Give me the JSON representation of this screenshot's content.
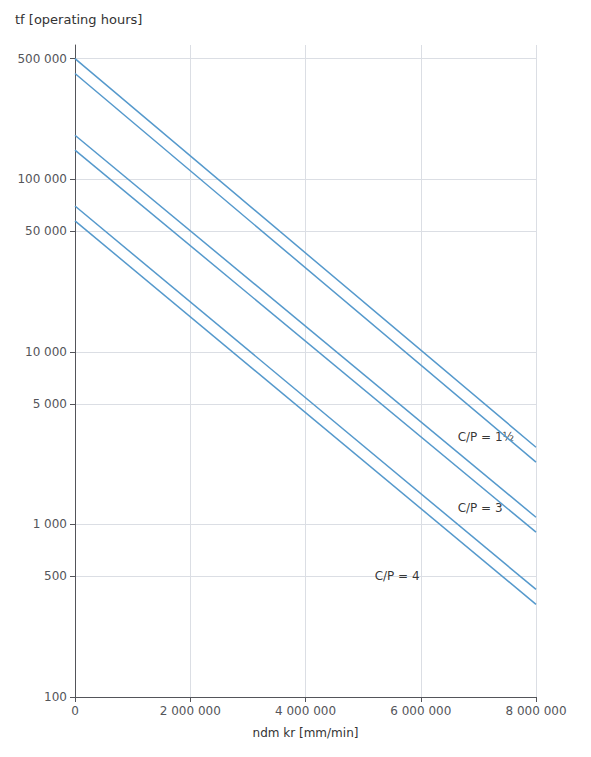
{
  "chart_data": {
    "type": "line",
    "title": "tf [operating hours]",
    "xlabel": "ndm kr [mm/min]",
    "log": "y",
    "grid": true,
    "color": "#5599cc",
    "x": [
      0,
      8000000
    ],
    "series": [
      {
        "values": [
          500000,
          2800
        ]
      },
      {
        "values": [
          410000,
          2296
        ]
      },
      {
        "values": [
          180000,
          1100
        ]
      },
      {
        "values": [
          147600,
          902
        ]
      },
      {
        "values": [
          70000,
          420
        ]
      },
      {
        "values": [
          57400,
          344.4
        ]
      }
    ],
    "annotations": [
      {
        "text": "C/P = 1½",
        "x": 6640000,
        "y": 3200
      },
      {
        "text": "C/P = 3",
        "x": 6640000,
        "y": 1250
      },
      {
        "text": "C/P = 4",
        "x": 5200000,
        "y": 500
      }
    ],
    "xlim": [
      0,
      8000000
    ],
    "xticks": [
      0,
      {
        "value": 2000000,
        "label": "2 000 000"
      },
      {
        "value": 4000000,
        "label": "4 000 000"
      },
      {
        "value": 6000000,
        "label": "6 000 000"
      },
      {
        "value": 8000000,
        "label": "8 000 000"
      }
    ],
    "ylim": [
      100,
      600000
    ],
    "yticks": [
      100,
      500,
      {
        "value": 1000,
        "label": "1 000"
      },
      {
        "value": 5000,
        "label": "5 000"
      },
      {
        "value": 10000,
        "label": "10 000"
      },
      {
        "value": 50000,
        "label": "50 000"
      },
      {
        "value": 100000,
        "label": "100 000"
      },
      {
        "value": 500000,
        "label": "500 000"
      }
    ]
  }
}
